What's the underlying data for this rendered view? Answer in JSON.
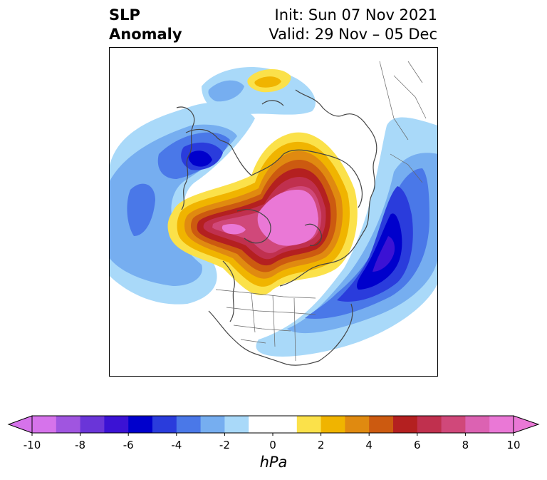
{
  "title": {
    "left_line1": "SLP",
    "left_line2": "Anomaly",
    "right_line1": "Init: Sun 07 Nov 2021",
    "right_line2": "Valid: 29 Nov – 05 Dec"
  },
  "colorbar": {
    "unit": "hPa",
    "min": -10,
    "max": 10,
    "step": 1,
    "extend": "both",
    "tick_labels": [
      "-10",
      "-8",
      "-6",
      "-4",
      "-2",
      "0",
      "2",
      "4",
      "6",
      "8",
      "10"
    ],
    "tick_values": [
      -10,
      -8,
      -6,
      -4,
      -2,
      0,
      2,
      4,
      6,
      8,
      10
    ],
    "colors": [
      "#d673eb",
      "#a055e0",
      "#6a35d8",
      "#3b12d4",
      "#0000cc",
      "#2a3cdc",
      "#4a78e8",
      "#76aef0",
      "#a9d9f9",
      "#ffffff",
      "#ffffff",
      "#fbe14a",
      "#f0b400",
      "#e08a10",
      "#cc5a10",
      "#b42020",
      "#c0304e",
      "#d0487a",
      "#dc62b2",
      "#ea78d6"
    ]
  },
  "map": {
    "projection": "north-polar-stereographic",
    "field": "sea level pressure anomaly"
  }
}
